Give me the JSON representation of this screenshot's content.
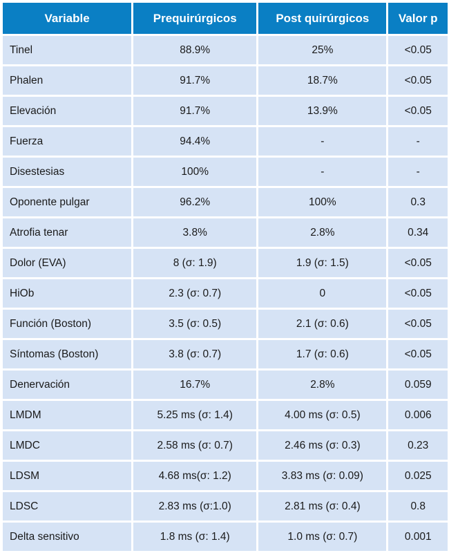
{
  "table": {
    "headers": [
      "Variable",
      "Prequirúrgicos",
      "Post quirúrgicos",
      "Valor p"
    ],
    "rows": [
      [
        "Tinel",
        "88.9%",
        "25%",
        "<0.05"
      ],
      [
        "Phalen",
        "91.7%",
        "18.7%",
        "<0.05"
      ],
      [
        "Elevación",
        "91.7%",
        "13.9%",
        "<0.05"
      ],
      [
        "Fuerza",
        "94.4%",
        "-",
        "-"
      ],
      [
        "Disestesias",
        "100%",
        "-",
        "-"
      ],
      [
        "Oponente pulgar",
        "96.2%",
        "100%",
        "0.3"
      ],
      [
        "Atrofia tenar",
        "3.8%",
        "2.8%",
        "0.34"
      ],
      [
        "Dolor (EVA)",
        "8 (σ: 1.9)",
        "1.9 (σ: 1.5)",
        "<0.05"
      ],
      [
        "HiOb",
        "2.3 (σ: 0.7)",
        "0",
        "<0.05"
      ],
      [
        "Función (Boston)",
        "3.5 (σ: 0.5)",
        "2.1 (σ: 0.6)",
        "<0.05"
      ],
      [
        "Síntomas (Boston)",
        "3.8 (σ: 0.7)",
        "1.7 (σ: 0.6)",
        "<0.05"
      ],
      [
        "Denervación",
        "16.7%",
        "2.8%",
        "0.059"
      ],
      [
        "LMDM",
        "5.25 ms (σ: 1.4)",
        "4.00 ms (σ: 0.5)",
        "0.006"
      ],
      [
        "LMDC",
        "2.58 ms (σ: 0.7)",
        "2.46 ms (σ: 0.3)",
        "0.23"
      ],
      [
        "LDSM",
        "4.68 ms(σ: 1.2)",
        "3.83 ms (σ: 0.09)",
        "0.025"
      ],
      [
        "LDSC",
        "2.83 ms (σ:1.0)",
        "2.81 ms (σ: 0.4)",
        "0.8"
      ],
      [
        "Delta sensitivo",
        "1.8 ms (σ: 1.4)",
        "1.0 ms (σ: 0.7)",
        "0.001"
      ]
    ]
  },
  "colors": {
    "header_bg": "#0a7fc4",
    "cell_bg": "#d6e3f5"
  }
}
